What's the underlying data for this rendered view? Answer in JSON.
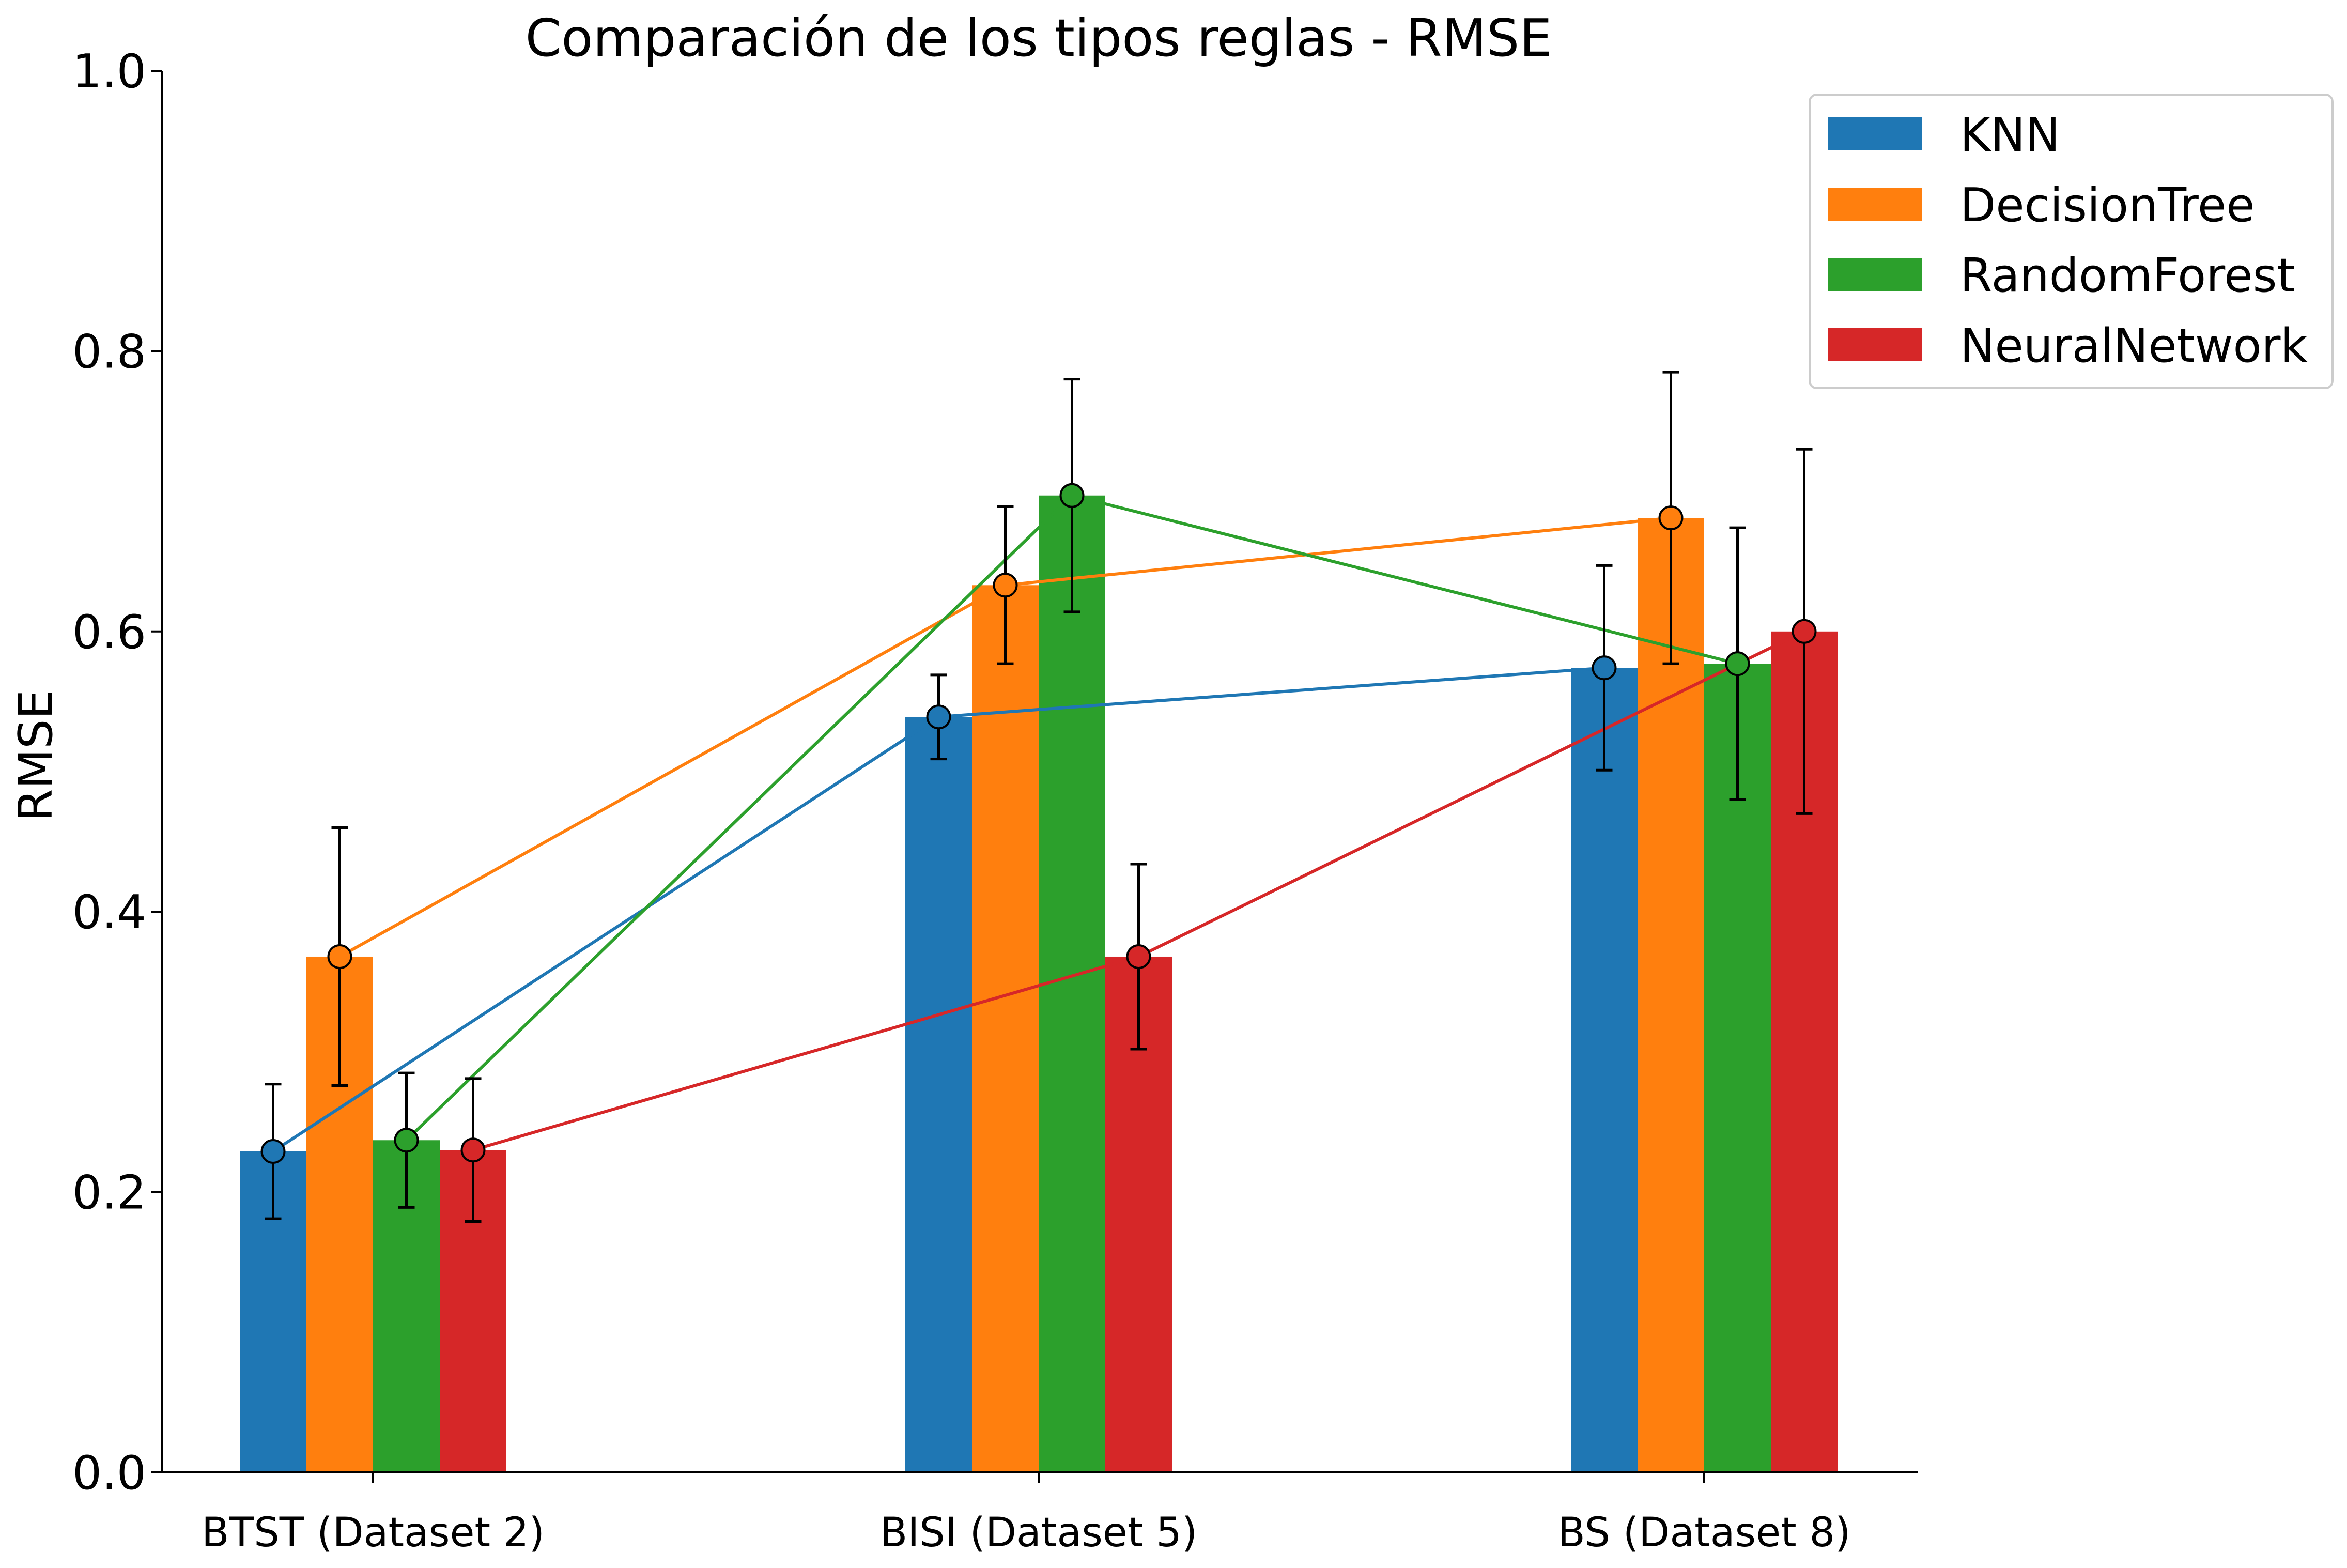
{
  "chart_data": {
    "type": "bar",
    "title": "Comparación de los tipos reglas - RMSE",
    "xlabel": "",
    "ylabel": "RMSE",
    "ylim": [
      0,
      1.0
    ],
    "yticks": [
      "0.0",
      "0.2",
      "0.4",
      "0.6",
      "0.8",
      "1.0"
    ],
    "categories": [
      "BTST (Dataset 2)",
      "BISI (Dataset 5)",
      "BS (Dataset 8)"
    ],
    "series": [
      {
        "name": "KNN",
        "color": "#1f77b4",
        "values": [
          0.229,
          0.539,
          0.574
        ],
        "errors": [
          0.048,
          0.03,
          0.073
        ]
      },
      {
        "name": "DecisionTree",
        "color": "#ff7f0e",
        "values": [
          0.368,
          0.633,
          0.681
        ],
        "errors": [
          0.092,
          0.056,
          0.104
        ]
      },
      {
        "name": "RandomForest",
        "color": "#2ca02c",
        "values": [
          0.237,
          0.697,
          0.577
        ],
        "errors": [
          0.048,
          0.083,
          0.097
        ]
      },
      {
        "name": "NeuralNetwork",
        "color": "#d62728",
        "values": [
          0.23,
          0.368,
          0.6
        ],
        "errors": [
          0.051,
          0.066,
          0.13
        ]
      }
    ],
    "markers": "circle markers with connecting lines per series",
    "error_bars": true,
    "grid": false,
    "legend_position": "top-right"
  }
}
